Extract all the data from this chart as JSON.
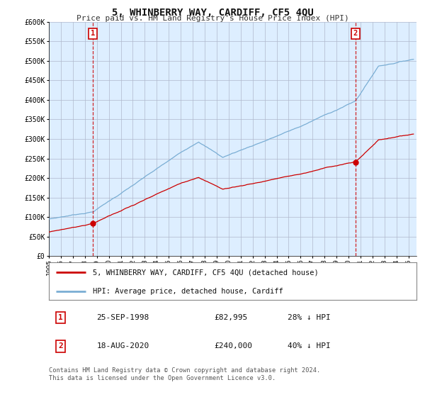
{
  "title": "5, WHINBERRY WAY, CARDIFF, CF5 4QU",
  "subtitle": "Price paid vs. HM Land Registry's House Price Index (HPI)",
  "legend_line1": "5, WHINBERRY WAY, CARDIFF, CF5 4QU (detached house)",
  "legend_line2": "HPI: Average price, detached house, Cardiff",
  "transaction1_date": "25-SEP-1998",
  "transaction1_price": 82995,
  "transaction1_label": "28% ↓ HPI",
  "transaction2_date": "18-AUG-2020",
  "transaction2_price": 240000,
  "transaction2_label": "40% ↓ HPI",
  "footnote1": "Contains HM Land Registry data © Crown copyright and database right 2024.",
  "footnote2": "This data is licensed under the Open Government Licence v3.0.",
  "hpi_color": "#7aaed4",
  "price_paid_color": "#cc0000",
  "background_color": "#ddeeff",
  "plot_background": "#ffffff",
  "grid_color": "#b0b8cc",
  "vline_color": "#cc0000",
  "ylim": [
    0,
    600000
  ],
  "ytick_values": [
    0,
    50000,
    100000,
    150000,
    200000,
    250000,
    300000,
    350000,
    400000,
    450000,
    500000,
    550000,
    600000
  ],
  "ytick_labels": [
    "£0",
    "£50K",
    "£100K",
    "£150K",
    "£200K",
    "£250K",
    "£300K",
    "£350K",
    "£400K",
    "£450K",
    "£500K",
    "£550K",
    "£600K"
  ]
}
